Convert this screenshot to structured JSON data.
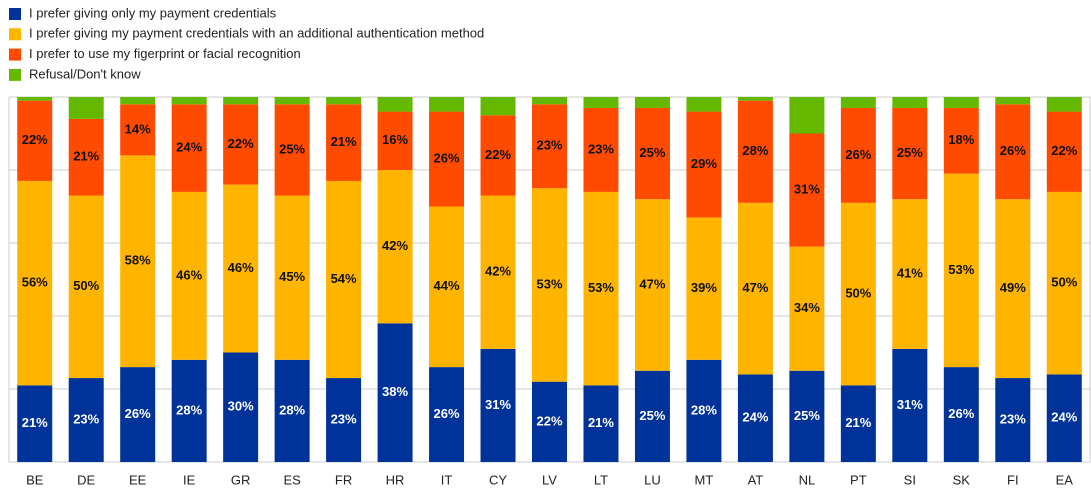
{
  "chart_data": {
    "type": "stacked_bar",
    "categories": [
      "BE",
      "DE",
      "EE",
      "IE",
      "GR",
      "ES",
      "FR",
      "HR",
      "IT",
      "CY",
      "LV",
      "LT",
      "LU",
      "MT",
      "AT",
      "NL",
      "PT",
      "SI",
      "SK",
      "FI",
      "EA"
    ],
    "series": [
      {
        "name": "I prefer giving only my payment credentials",
        "color": "#003399",
        "values": [
          21,
          23,
          26,
          28,
          30,
          28,
          23,
          38,
          26,
          31,
          22,
          21,
          25,
          28,
          24,
          25,
          21,
          31,
          26,
          23,
          24
        ],
        "value_labels": [
          "21%",
          "23%",
          "26%",
          "28%",
          "30%",
          "28%",
          "23%",
          "38%",
          "26%",
          "31%",
          "22%",
          "21%",
          "25%",
          "28%",
          "24%",
          "25%",
          "21%",
          "31%",
          "26%",
          "23%",
          "24%"
        ]
      },
      {
        "name": "I prefer giving my payment credentials with an additional authentication method",
        "color": "#ffb400",
        "values": [
          56,
          50,
          58,
          46,
          46,
          45,
          54,
          42,
          44,
          42,
          53,
          53,
          47,
          39,
          47,
          34,
          50,
          41,
          53,
          49,
          50
        ],
        "value_labels": [
          "56%",
          "50%",
          "58%",
          "46%",
          "46%",
          "45%",
          "54%",
          "42%",
          "44%",
          "42%",
          "53%",
          "53%",
          "47%",
          "39%",
          "47%",
          "34%",
          "50%",
          "41%",
          "53%",
          "49%",
          "50%"
        ]
      },
      {
        "name": "I prefer to use my figerprint or facial recognition",
        "color": "#ff4b00",
        "values": [
          22,
          21,
          14,
          24,
          22,
          25,
          21,
          16,
          26,
          22,
          23,
          23,
          25,
          29,
          28,
          31,
          26,
          25,
          18,
          26,
          22
        ],
        "value_labels": [
          "22%",
          "21%",
          "14%",
          "24%",
          "22%",
          "25%",
          "21%",
          "16%",
          "26%",
          "22%",
          "23%",
          "23%",
          "25%",
          "29%",
          "28%",
          "31%",
          "26%",
          "25%",
          "18%",
          "26%",
          "22%"
        ]
      },
      {
        "name": "Refusal/Don't know",
        "color": "#65b800",
        "values": [
          1,
          6,
          2,
          2,
          2,
          2,
          2,
          4,
          4,
          5,
          2,
          3,
          3,
          4,
          1,
          10,
          3,
          3,
          3,
          2,
          4
        ]
      }
    ],
    "ylim": [
      0,
      100
    ],
    "yticks": [
      0,
      20,
      40,
      60,
      80,
      100
    ],
    "grid": true
  }
}
